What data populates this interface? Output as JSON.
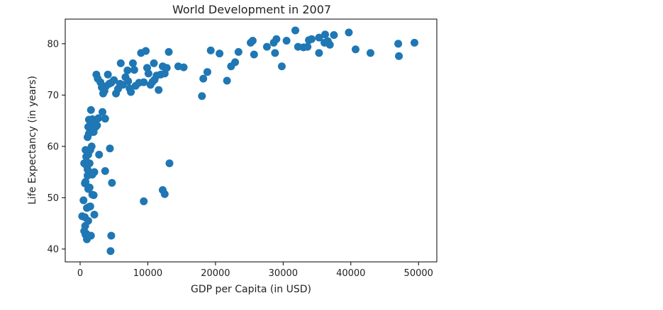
{
  "chart_data": {
    "type": "scatter",
    "title": "World Development in 2007",
    "xlabel": "GDP per Capita (in USD)",
    "ylabel": "Life Expectancy (in years)",
    "xlim": [
      -2200,
      52700
    ],
    "ylim": [
      37.5,
      84.8
    ],
    "xticks": [
      0,
      10000,
      20000,
      30000,
      40000,
      50000
    ],
    "xtick_labels": [
      "0",
      "10000",
      "20000",
      "30000",
      "40000",
      "50000"
    ],
    "yticks": [
      40,
      50,
      60,
      70,
      80
    ],
    "ytick_labels": [
      "40",
      "50",
      "60",
      "70",
      "80"
    ],
    "grid": false,
    "marker_color": "#1f77b4",
    "points": [
      [
        300,
        46.4
      ],
      [
        500,
        49.5
      ],
      [
        600,
        43.5
      ],
      [
        700,
        46.2
      ],
      [
        750,
        44.5
      ],
      [
        800,
        42.8
      ],
      [
        900,
        43.0
      ],
      [
        1000,
        41.9
      ],
      [
        1100,
        42.5
      ],
      [
        1200,
        45.5
      ],
      [
        1300,
        48.2
      ],
      [
        1000,
        48.0
      ],
      [
        1500,
        48.3
      ],
      [
        1600,
        42.6
      ],
      [
        1800,
        50.6
      ],
      [
        2000,
        50.5
      ],
      [
        2100,
        46.7
      ],
      [
        700,
        52.8
      ],
      [
        800,
        53.1
      ],
      [
        1200,
        51.7
      ],
      [
        1400,
        52.0
      ],
      [
        1100,
        54.3
      ],
      [
        1500,
        54.6
      ],
      [
        1800,
        54.5
      ],
      [
        2100,
        55.0
      ],
      [
        600,
        56.7
      ],
      [
        800,
        56.5
      ],
      [
        1100,
        55.5
      ],
      [
        1400,
        56.7
      ],
      [
        900,
        58.0
      ],
      [
        1200,
        58.4
      ],
      [
        1500,
        59.3
      ],
      [
        1700,
        60.0
      ],
      [
        800,
        59.3
      ],
      [
        1100,
        61.8
      ],
      [
        1300,
        62.5
      ],
      [
        1600,
        62.8
      ],
      [
        2000,
        62.8
      ],
      [
        1200,
        63.8
      ],
      [
        1500,
        64.0
      ],
      [
        1800,
        64.5
      ],
      [
        2200,
        64.8
      ],
      [
        2500,
        64.1
      ],
      [
        1300,
        65.2
      ],
      [
        1800,
        65.3
      ],
      [
        1600,
        67.1
      ],
      [
        2300,
        63.8
      ],
      [
        2700,
        65.5
      ],
      [
        3300,
        66.7
      ],
      [
        3700,
        65.4
      ],
      [
        2800,
        58.4
      ],
      [
        3700,
        55.2
      ],
      [
        4400,
        59.6
      ],
      [
        4700,
        52.9
      ],
      [
        4600,
        42.6
      ],
      [
        4500,
        39.6
      ],
      [
        2400,
        74.0
      ],
      [
        2600,
        73.2
      ],
      [
        3000,
        72.5
      ],
      [
        3200,
        71.5
      ],
      [
        3400,
        70.3
      ],
      [
        3600,
        70.8
      ],
      [
        3800,
        71.7
      ],
      [
        4100,
        74.0
      ],
      [
        4300,
        72.2
      ],
      [
        4600,
        72.4
      ],
      [
        5000,
        72.9
      ],
      [
        5300,
        70.3
      ],
      [
        5600,
        71.2
      ],
      [
        5900,
        72.2
      ],
      [
        6000,
        76.2
      ],
      [
        6300,
        72.0
      ],
      [
        6700,
        73.5
      ],
      [
        7000,
        74.8
      ],
      [
        7100,
        72.7
      ],
      [
        7300,
        71.3
      ],
      [
        7500,
        70.6
      ],
      [
        7800,
        76.2
      ],
      [
        8000,
        74.9
      ],
      [
        8200,
        71.8
      ],
      [
        8700,
        72.4
      ],
      [
        9000,
        78.2
      ],
      [
        9400,
        72.5
      ],
      [
        9700,
        78.6
      ],
      [
        9900,
        75.3
      ],
      [
        10100,
        74.2
      ],
      [
        10400,
        72.0
      ],
      [
        10700,
        72.6
      ],
      [
        10900,
        76.2
      ],
      [
        11000,
        73.0
      ],
      [
        11300,
        73.8
      ],
      [
        11600,
        71.0
      ],
      [
        11900,
        74.0
      ],
      [
        12200,
        75.6
      ],
      [
        12500,
        74.2
      ],
      [
        12800,
        75.3
      ],
      [
        13100,
        78.4
      ],
      [
        12200,
        51.5
      ],
      [
        12500,
        50.7
      ],
      [
        13200,
        56.7
      ],
      [
        9400,
        49.3
      ],
      [
        14500,
        75.6
      ],
      [
        15300,
        75.4
      ],
      [
        18000,
        69.8
      ],
      [
        18200,
        73.2
      ],
      [
        18800,
        74.5
      ],
      [
        19300,
        78.7
      ],
      [
        20600,
        78.1
      ],
      [
        21700,
        72.8
      ],
      [
        22300,
        75.6
      ],
      [
        22900,
        76.4
      ],
      [
        23400,
        78.4
      ],
      [
        25200,
        80.2
      ],
      [
        25500,
        80.6
      ],
      [
        25700,
        77.9
      ],
      [
        27600,
        79.4
      ],
      [
        28600,
        80.2
      ],
      [
        28800,
        78.2
      ],
      [
        29000,
        80.9
      ],
      [
        29800,
        75.6
      ],
      [
        30500,
        80.6
      ],
      [
        31800,
        82.6
      ],
      [
        32200,
        79.4
      ],
      [
        33000,
        79.3
      ],
      [
        33600,
        79.4
      ],
      [
        33800,
        80.7
      ],
      [
        34200,
        80.9
      ],
      [
        35300,
        81.2
      ],
      [
        35300,
        78.2
      ],
      [
        36100,
        80.2
      ],
      [
        36200,
        81.8
      ],
      [
        36600,
        80.5
      ],
      [
        36900,
        79.8
      ],
      [
        37500,
        81.7
      ],
      [
        39700,
        82.2
      ],
      [
        40700,
        78.9
      ],
      [
        42900,
        78.2
      ],
      [
        47000,
        80.0
      ],
      [
        47100,
        77.6
      ],
      [
        49400,
        80.2
      ]
    ]
  }
}
